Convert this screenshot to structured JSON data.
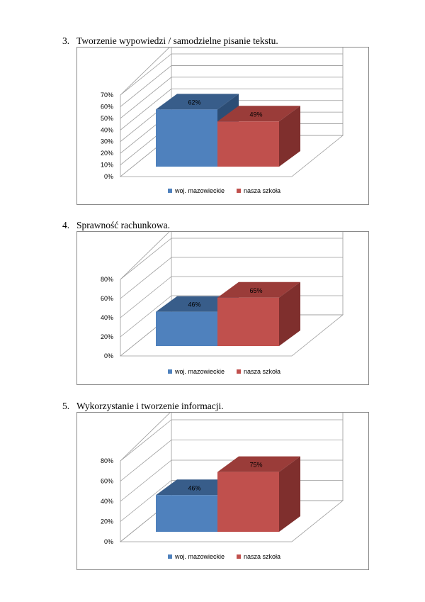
{
  "sections": [
    {
      "number": "3.",
      "title": "Tworzenie wypowiedzi / samodzielne pisanie tekstu."
    },
    {
      "number": "4.",
      "title": "Sprawność rachunkowa."
    },
    {
      "number": "5.",
      "title": "Wykorzystanie i tworzenie informacji."
    }
  ],
  "colors": {
    "woj_front": "#4f81bd",
    "woj_top": "#385d8a",
    "woj_side": "#2c4d75",
    "szkola_front": "#c0504d",
    "szkola_top": "#9a3c39",
    "szkola_side": "#7f2f2d",
    "grid": "#9a9a9a"
  },
  "chart_data": [
    {
      "type": "bar",
      "three_d": true,
      "categories": [
        ""
      ],
      "series": [
        {
          "name": "woj. mazowieckie",
          "values": [
            62
          ],
          "label": "62%"
        },
        {
          "name": "nasza szkoła",
          "values": [
            49
          ],
          "label": "49%"
        }
      ],
      "yticks": [
        "0%",
        "10%",
        "20%",
        "30%",
        "40%",
        "50%",
        "60%",
        "70%"
      ],
      "ylim": [
        0,
        70
      ],
      "legend": "bottom"
    },
    {
      "type": "bar",
      "three_d": true,
      "categories": [
        ""
      ],
      "series": [
        {
          "name": "woj. mazowieckie",
          "values": [
            46
          ],
          "label": "46%"
        },
        {
          "name": "nasza szkoła",
          "values": [
            65
          ],
          "label": "65%"
        }
      ],
      "yticks": [
        "0%",
        "20%",
        "40%",
        "60%",
        "80%"
      ],
      "ylim": [
        0,
        80
      ],
      "legend": "bottom"
    },
    {
      "type": "bar",
      "three_d": true,
      "categories": [
        ""
      ],
      "series": [
        {
          "name": "woj. mazowieckie",
          "values": [
            46
          ],
          "label": "46%"
        },
        {
          "name": "nasza szkoła",
          "values": [
            75
          ],
          "label": "75%"
        }
      ],
      "yticks": [
        "0%",
        "20%",
        "40%",
        "60%",
        "80%"
      ],
      "ylim": [
        0,
        80
      ],
      "legend": "bottom"
    }
  ]
}
